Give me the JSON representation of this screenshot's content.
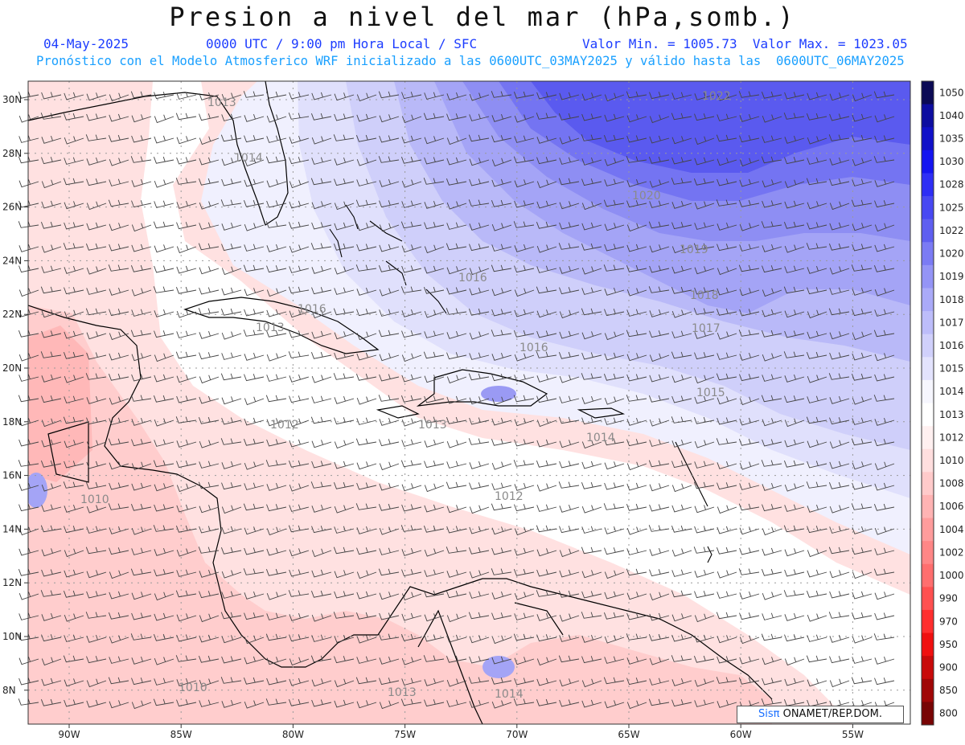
{
  "header": {
    "title": "Presion a nivel del mar (hPa,somb.)",
    "date": "04-May-2025",
    "time": "0000 UTC / 9:00 pm Hora Local / SFC",
    "minmax": "Valor Min. = 1005.73  Valor Max. = 1023.05",
    "model_line": "Pronóstico con el Modelo Atmosferico WRF inicializado a las 0600UTC_03MAY2025 y válido hasta las  0600UTC_06MAY2025"
  },
  "map": {
    "lat_labels": [
      "30N",
      "28N",
      "26N",
      "24N",
      "22N",
      "20N",
      "18N",
      "16N",
      "14N",
      "12N",
      "10N",
      "8N"
    ],
    "lon_labels": [
      "90W",
      "85W",
      "80W",
      "75W",
      "70W",
      "65W",
      "60W",
      "55W"
    ],
    "contour_labels": [
      "1022",
      "1020",
      "1019",
      "1018",
      "1017",
      "1016",
      "1015",
      "1014",
      "1013",
      "1012",
      "1010",
      "1013",
      "1014",
      "1016",
      "1013",
      "1012",
      "1010",
      "1016",
      "1014",
      "1013"
    ]
  },
  "colorbar": {
    "levels": [
      "1050",
      "1040",
      "1035",
      "1030",
      "1028",
      "1025",
      "1022",
      "1020",
      "1019",
      "1018",
      "1017",
      "1016",
      "1015",
      "1014",
      "1013",
      "1012",
      "1010",
      "1008",
      "1006",
      "1004",
      "1002",
      "1000",
      "990",
      "970",
      "950",
      "900",
      "850",
      "800"
    ],
    "colors": [
      "#0b0a55",
      "#0d0da0",
      "#1010c8",
      "#1414f0",
      "#2e2ef5",
      "#4848f2",
      "#5f5ff0",
      "#7b7bf4",
      "#9494f6",
      "#aaaaf8",
      "#bdbdfa",
      "#d0d0fb",
      "#e3e3fd",
      "#f6f6fe",
      "#ffffff",
      "#fff0f0",
      "#ffdede",
      "#ffcaca",
      "#ffb3b3",
      "#ff9c9c",
      "#ff8686",
      "#ff6e6e",
      "#ff5050",
      "#ff2e2e",
      "#f01010",
      "#c80a0a",
      "#a00606",
      "#780404"
    ]
  },
  "credit": {
    "logo": "Sisπ",
    "text": " ONAMET/REP.DOM."
  }
}
